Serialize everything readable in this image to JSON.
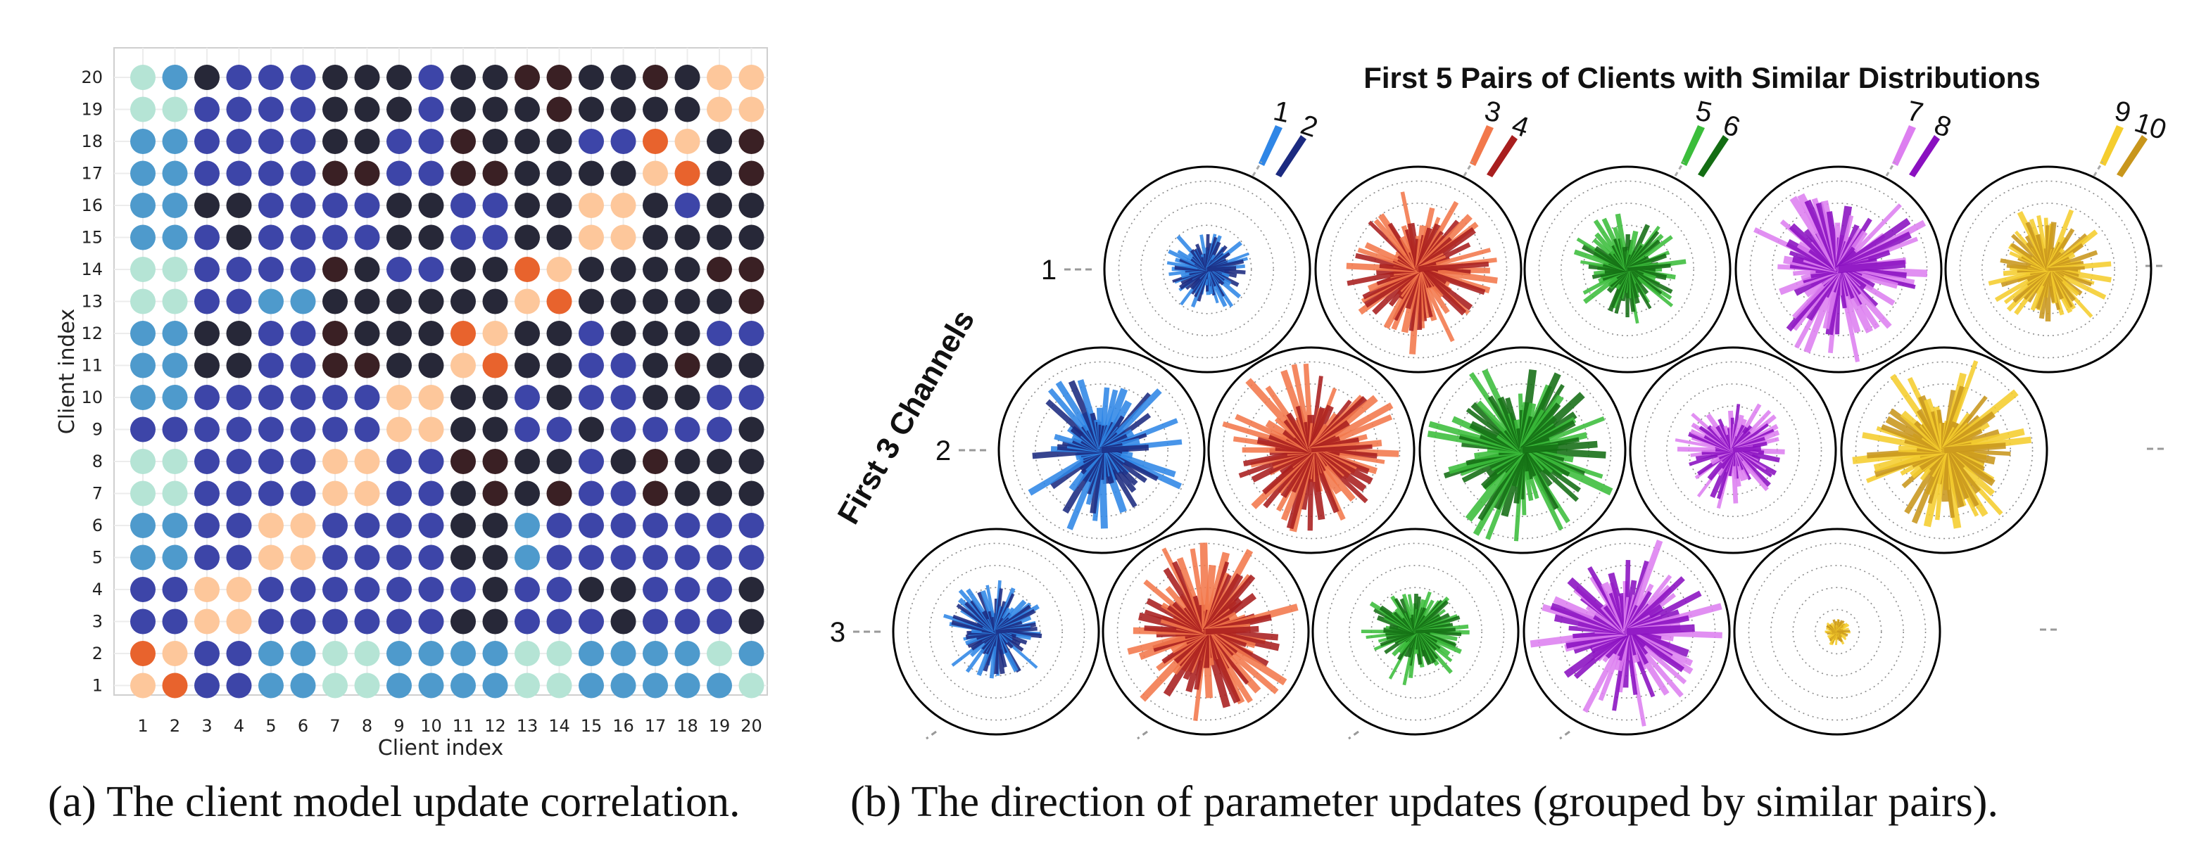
{
  "panel_a": {
    "caption": "(a) The client model update correlation.",
    "chart_data": {
      "type": "heatmap",
      "title": "",
      "xlabel": "Client index",
      "ylabel": "Client index",
      "x_ticks": [
        "1",
        "2",
        "3",
        "4",
        "5",
        "6",
        "7",
        "8",
        "9",
        "10",
        "11",
        "12",
        "13",
        "14",
        "15",
        "16",
        "17",
        "18",
        "19",
        "20"
      ],
      "y_ticks": [
        "1",
        "2",
        "3",
        "4",
        "5",
        "6",
        "7",
        "8",
        "9",
        "10",
        "11",
        "12",
        "13",
        "14",
        "15",
        "16",
        "17",
        "18",
        "19",
        "20"
      ],
      "value_range": [
        -1,
        1
      ],
      "note": "values estimated from marker colour; diagonal pairs (1,2),(3,4),(5,6),(7,8),(9,10),(11,12),(13,14),(15,16),(17,18),(19,20) are highly correlated",
      "colors": {
        "very_high": "#e8632d",
        "high": "#fdc79b",
        "moderate": "#b5e4d5",
        "low": "#4e9acc",
        "near_zero": "#3d45a8",
        "negative": "#272838",
        "strongly_negative": "#3a2024"
      },
      "rows_top_to_bottom": [
        {
          "row": "20",
          "values": [
            0.25,
            -0.15,
            -0.4,
            -0.2,
            -0.2,
            -0.2,
            -0.4,
            -0.4,
            -0.4,
            -0.2,
            -0.4,
            -0.4,
            -0.55,
            -0.55,
            -0.4,
            -0.4,
            -0.55,
            -0.4,
            0.7,
            0.7
          ]
        },
        {
          "row": "19",
          "values": [
            0.25,
            0.25,
            -0.2,
            -0.2,
            -0.2,
            -0.2,
            -0.4,
            -0.4,
            -0.4,
            -0.2,
            -0.4,
            -0.4,
            -0.4,
            -0.55,
            -0.4,
            -0.4,
            -0.4,
            -0.4,
            0.7,
            0.7
          ]
        },
        {
          "row": "18",
          "values": [
            -0.15,
            -0.15,
            -0.2,
            -0.2,
            -0.2,
            -0.2,
            -0.4,
            -0.4,
            -0.2,
            -0.2,
            -0.55,
            -0.4,
            -0.4,
            -0.4,
            -0.2,
            -0.2,
            0.95,
            0.7,
            -0.4,
            -0.55
          ]
        },
        {
          "row": "17",
          "values": [
            -0.15,
            -0.15,
            -0.2,
            -0.2,
            -0.2,
            -0.2,
            -0.55,
            -0.55,
            -0.2,
            -0.2,
            -0.55,
            -0.55,
            -0.4,
            -0.4,
            -0.4,
            -0.4,
            0.7,
            0.95,
            -0.4,
            -0.55
          ]
        },
        {
          "row": "16",
          "values": [
            -0.15,
            -0.15,
            -0.4,
            -0.4,
            -0.2,
            -0.2,
            -0.2,
            -0.2,
            -0.4,
            -0.4,
            -0.2,
            -0.2,
            -0.4,
            -0.4,
            0.7,
            0.7,
            -0.4,
            -0.2,
            -0.4,
            -0.4
          ]
        },
        {
          "row": "15",
          "values": [
            -0.15,
            -0.15,
            -0.2,
            -0.4,
            -0.2,
            -0.2,
            -0.2,
            -0.2,
            -0.4,
            -0.4,
            -0.2,
            -0.2,
            -0.4,
            -0.4,
            0.7,
            0.7,
            -0.4,
            -0.4,
            -0.4,
            -0.4
          ]
        },
        {
          "row": "14",
          "values": [
            0.25,
            0.25,
            -0.2,
            -0.2,
            -0.2,
            -0.2,
            -0.55,
            -0.4,
            -0.2,
            -0.2,
            -0.4,
            -0.4,
            0.95,
            0.7,
            -0.4,
            -0.4,
            -0.4,
            -0.4,
            -0.55,
            -0.55
          ]
        },
        {
          "row": "13",
          "values": [
            0.25,
            0.25,
            -0.2,
            -0.2,
            -0.15,
            -0.15,
            -0.4,
            -0.4,
            -0.4,
            -0.4,
            -0.4,
            -0.4,
            0.7,
            0.95,
            -0.4,
            -0.4,
            -0.4,
            -0.4,
            -0.4,
            -0.55
          ]
        },
        {
          "row": "12",
          "values": [
            -0.15,
            -0.15,
            -0.4,
            -0.4,
            -0.2,
            -0.2,
            -0.55,
            -0.4,
            -0.4,
            -0.4,
            0.95,
            0.7,
            -0.4,
            -0.4,
            -0.2,
            -0.4,
            -0.4,
            -0.4,
            -0.2,
            -0.2
          ]
        },
        {
          "row": "11",
          "values": [
            -0.15,
            -0.15,
            -0.4,
            -0.4,
            -0.2,
            -0.2,
            -0.55,
            -0.55,
            -0.4,
            -0.4,
            0.7,
            0.95,
            -0.4,
            -0.4,
            -0.2,
            -0.2,
            -0.4,
            -0.55,
            -0.4,
            -0.4
          ]
        },
        {
          "row": "10",
          "values": [
            -0.15,
            -0.15,
            -0.2,
            -0.2,
            -0.2,
            -0.2,
            -0.2,
            -0.2,
            0.7,
            0.7,
            -0.4,
            -0.4,
            -0.2,
            -0.4,
            -0.2,
            -0.2,
            -0.4,
            -0.4,
            -0.2,
            -0.2
          ]
        },
        {
          "row": "9",
          "values": [
            -0.2,
            -0.2,
            -0.2,
            -0.2,
            -0.2,
            -0.2,
            -0.2,
            -0.2,
            0.7,
            0.7,
            -0.4,
            -0.4,
            -0.2,
            -0.2,
            -0.4,
            -0.2,
            -0.2,
            -0.2,
            -0.2,
            -0.4
          ]
        },
        {
          "row": "8",
          "values": [
            0.25,
            0.25,
            -0.2,
            -0.2,
            -0.2,
            -0.2,
            0.7,
            0.7,
            -0.2,
            -0.2,
            -0.55,
            -0.55,
            -0.4,
            -0.4,
            -0.2,
            -0.4,
            -0.55,
            -0.4,
            -0.4,
            -0.4
          ]
        },
        {
          "row": "7",
          "values": [
            0.25,
            0.25,
            -0.2,
            -0.2,
            -0.2,
            -0.2,
            0.7,
            0.7,
            -0.2,
            -0.2,
            -0.4,
            -0.55,
            -0.4,
            -0.55,
            -0.2,
            -0.2,
            -0.55,
            -0.4,
            -0.4,
            -0.4
          ]
        },
        {
          "row": "6",
          "values": [
            -0.15,
            -0.15,
            -0.2,
            -0.2,
            0.7,
            0.7,
            -0.2,
            -0.2,
            -0.2,
            -0.2,
            -0.4,
            -0.4,
            -0.15,
            -0.2,
            -0.2,
            -0.2,
            -0.2,
            -0.2,
            -0.2,
            -0.2
          ]
        },
        {
          "row": "5",
          "values": [
            -0.15,
            -0.15,
            -0.2,
            -0.2,
            0.7,
            0.7,
            -0.2,
            -0.2,
            -0.2,
            -0.2,
            -0.4,
            -0.4,
            -0.15,
            -0.2,
            -0.2,
            -0.2,
            -0.2,
            -0.2,
            -0.2,
            -0.2
          ]
        },
        {
          "row": "4",
          "values": [
            -0.2,
            -0.2,
            0.7,
            0.7,
            -0.2,
            -0.2,
            -0.2,
            -0.2,
            -0.2,
            -0.2,
            -0.2,
            -0.4,
            -0.2,
            -0.2,
            -0.4,
            -0.4,
            -0.2,
            -0.2,
            -0.2,
            -0.4
          ]
        },
        {
          "row": "3",
          "values": [
            -0.2,
            -0.2,
            0.7,
            0.7,
            -0.2,
            -0.2,
            -0.2,
            -0.2,
            -0.2,
            -0.2,
            -0.4,
            -0.4,
            -0.2,
            -0.2,
            -0.2,
            -0.4,
            -0.2,
            -0.2,
            -0.2,
            -0.4
          ]
        },
        {
          "row": "2",
          "values": [
            0.95,
            0.7,
            -0.2,
            -0.2,
            -0.15,
            -0.15,
            0.25,
            0.25,
            -0.15,
            -0.15,
            -0.15,
            -0.15,
            0.25,
            0.25,
            -0.15,
            -0.15,
            -0.15,
            -0.15,
            0.25,
            -0.15
          ]
        },
        {
          "row": "1",
          "values": [
            0.7,
            0.95,
            -0.2,
            -0.2,
            -0.15,
            -0.15,
            0.25,
            0.25,
            -0.15,
            -0.15,
            -0.15,
            -0.15,
            0.25,
            0.25,
            -0.15,
            -0.15,
            -0.15,
            -0.15,
            -0.15,
            0.25
          ]
        }
      ]
    }
  },
  "panel_b": {
    "caption": "(b) The direction of parameter updates (grouped by similar pairs).",
    "chart_data": {
      "type": "polar_bar_grid",
      "title": "First 5 Pairs of Clients with Similar Distributions",
      "ylabel": "First 3 Channels",
      "row_labels": [
        "1",
        "2",
        "3"
      ],
      "pairs": [
        {
          "labels": [
            "1",
            "2"
          ],
          "colors": [
            "#2f86e6",
            "#1b2a80"
          ],
          "magnitude": [
            0.45,
            0.9,
            0.55
          ]
        },
        {
          "labels": [
            "3",
            "4"
          ],
          "colors": [
            "#f2784b",
            "#a81e1e"
          ],
          "magnitude": [
            0.85,
            0.95,
            0.95
          ]
        },
        {
          "labels": [
            "5",
            "6"
          ],
          "colors": [
            "#3bbd3b",
            "#136d13"
          ],
          "magnitude": [
            0.6,
            1.0,
            0.55
          ]
        },
        {
          "labels": [
            "7",
            "8"
          ],
          "colors": [
            "#dd7ff0",
            "#8a10c0"
          ],
          "magnitude": [
            1.0,
            0.6,
            1.0
          ]
        },
        {
          "labels": [
            "9",
            "10"
          ],
          "colors": [
            "#f5cd2e",
            "#c8961c"
          ],
          "magnitude": [
            0.65,
            0.95,
            0.15
          ]
        }
      ]
    }
  }
}
